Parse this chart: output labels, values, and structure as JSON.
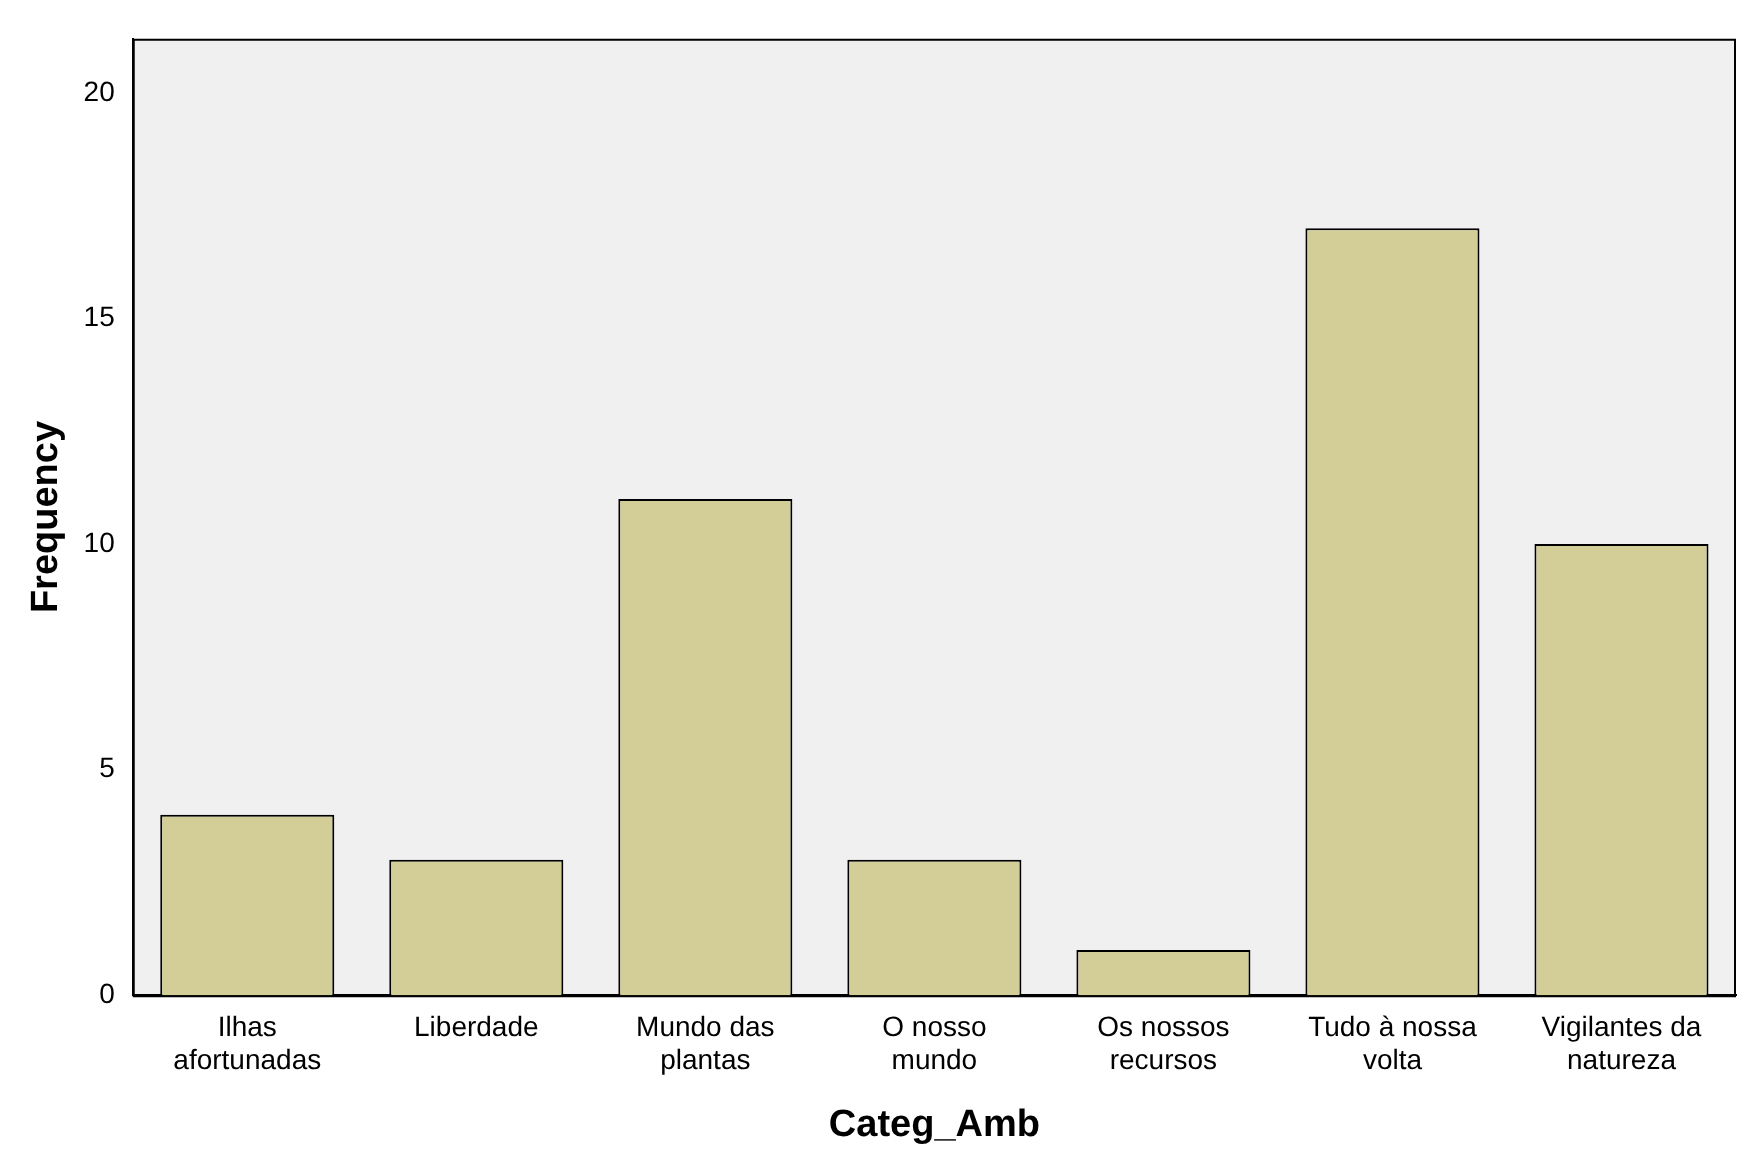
{
  "chart_data": {
    "type": "bar",
    "xlabel": "Categ_Amb",
    "ylabel": "Frequency",
    "categories": [
      "Ilhas afortunadas",
      "Liberdade",
      "Mundo das plantas",
      "O nosso mundo",
      "Os nossos recursos",
      "Tudo à nossa volta",
      "Vigilantes da natureza"
    ],
    "values": [
      4,
      3,
      11,
      3,
      1,
      17,
      10
    ],
    "color": "#d3ce98",
    "ylim": [
      0,
      21.2
    ],
    "yticks": [
      0,
      5,
      10,
      15,
      20
    ],
    "grid": false,
    "legend": false
  }
}
